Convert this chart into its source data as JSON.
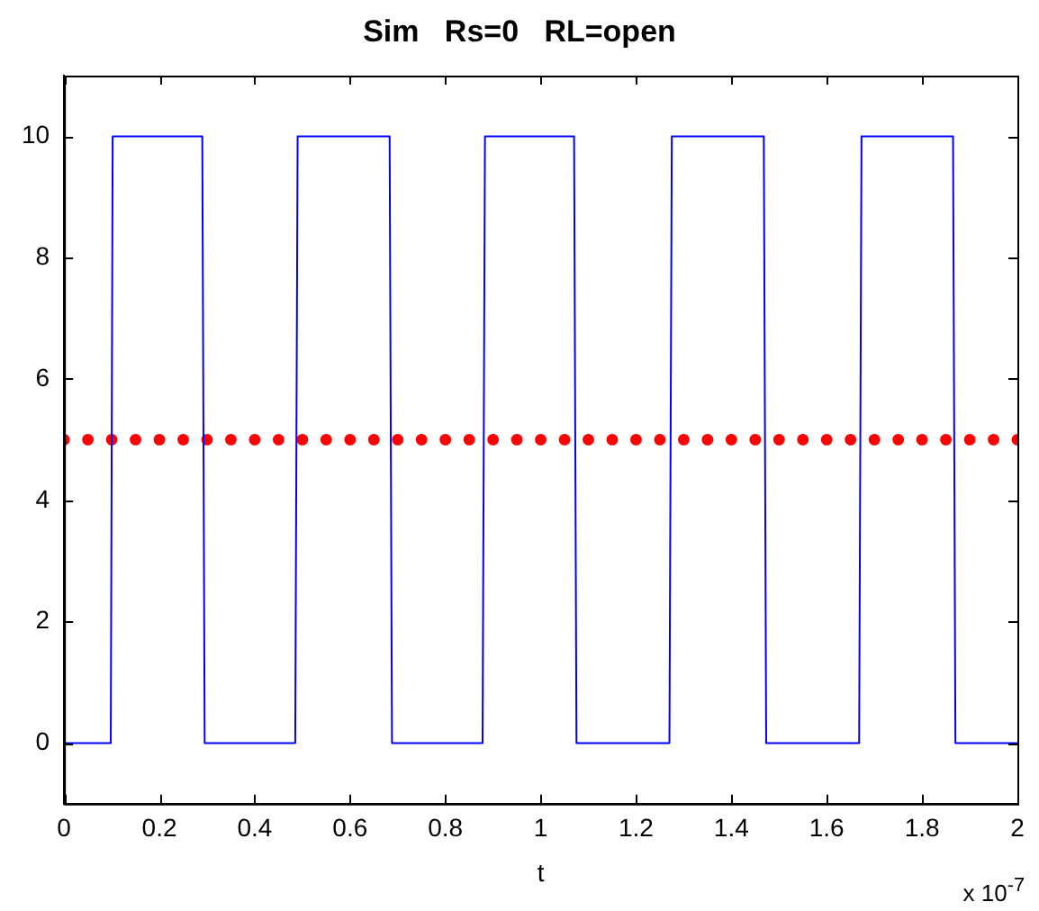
{
  "chart_data": {
    "type": "line",
    "title": "Sim   Rs=0   RL=open",
    "xlabel": "t",
    "annotations": [
      "x 10$^{-7}$"
    ],
    "xlim": [
      0,
      2
    ],
    "xticks": [
      0,
      0.2,
      0.4,
      0.6,
      0.8,
      1,
      1.2,
      1.4,
      1.6,
      1.8,
      2
    ],
    "ylim": [
      -1,
      11
    ],
    "yticks": [
      0,
      2,
      4,
      6,
      8,
      10
    ],
    "grid": false,
    "legend": false,
    "series": [
      {
        "color": "#0000ff",
        "marker": "none",
        "x": [
          0,
          0.098,
          0.102,
          0.29,
          0.295,
          0.485,
          0.49,
          0.683,
          0.688,
          0.878,
          0.883,
          1.07,
          1.075,
          1.27,
          1.275,
          1.468,
          1.473,
          1.668,
          1.673,
          1.865,
          1.87,
          2
        ],
        "values": [
          0,
          0,
          10,
          10,
          0,
          0,
          10,
          10,
          0,
          0,
          10,
          10,
          0,
          0,
          10,
          10,
          0,
          0,
          10,
          10,
          0,
          0
        ]
      },
      {
        "type": "scatter",
        "color": "#ff0000",
        "marker": "circle",
        "x": [
          0,
          0.05,
          0.1,
          0.15,
          0.2,
          0.25,
          0.3,
          0.35,
          0.4,
          0.45,
          0.5,
          0.55,
          0.6,
          0.65,
          0.7,
          0.75,
          0.8,
          0.85,
          0.9,
          0.95,
          1,
          1.05,
          1.1,
          1.15,
          1.2,
          1.25,
          1.3,
          1.35,
          1.4,
          1.45,
          1.5,
          1.55,
          1.6,
          1.65,
          1.7,
          1.75,
          1.8,
          1.85,
          1.9,
          1.95,
          2
        ],
        "values": [
          5,
          5,
          5,
          5,
          5,
          5,
          5,
          5,
          5,
          5,
          5,
          5,
          5,
          5,
          5,
          5,
          5,
          5,
          5,
          5,
          5,
          5,
          5,
          5,
          5,
          5,
          5,
          5,
          5,
          5,
          5,
          5,
          5,
          5,
          5,
          5,
          5,
          5,
          5,
          5,
          5
        ]
      }
    ]
  }
}
